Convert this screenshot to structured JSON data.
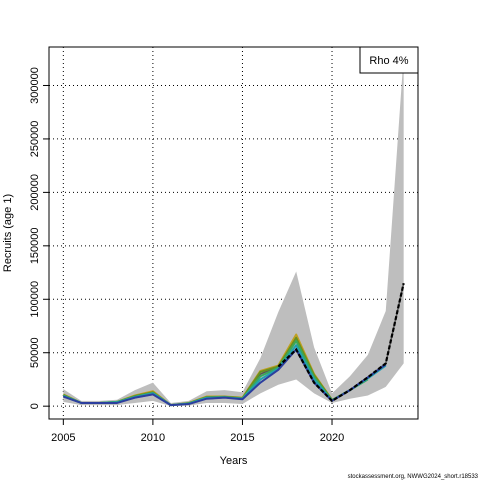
{
  "chart_data": {
    "type": "line",
    "xlabel": "Years",
    "ylabel": "Recruits (age 1)",
    "xlim": [
      2004.2,
      2024.8
    ],
    "ylim": [
      -12000,
      336000
    ],
    "x_ticks": [
      2005,
      2010,
      2015,
      2020
    ],
    "y_ticks": [
      0,
      50000,
      100000,
      150000,
      200000,
      250000,
      300000
    ],
    "grid": "dotted",
    "legend": {
      "placement": "top-right",
      "text": "Rho 4%"
    },
    "credit": "stockassessment.org, NWWG2024_short.r18533",
    "band": {
      "name": "confidence interval",
      "color": "#bebebe",
      "x": [
        2005,
        2006,
        2007,
        2008,
        2009,
        2010,
        2011,
        2012,
        2013,
        2014,
        2015,
        2016,
        2017,
        2018,
        2019,
        2020,
        2021,
        2022,
        2023,
        2024
      ],
      "lower": [
        4000,
        1000,
        1000,
        1000,
        3000,
        5000,
        0,
        500,
        3000,
        3000,
        2000,
        12000,
        20000,
        25000,
        12000,
        3000,
        7000,
        10000,
        18000,
        40000
      ],
      "upper": [
        16000,
        5000,
        5000,
        6000,
        15000,
        22000,
        3000,
        5000,
        14000,
        15000,
        13000,
        45000,
        88000,
        126000,
        55000,
        12000,
        28000,
        48000,
        89000,
        328000
      ]
    },
    "series": [
      {
        "color": "#555555",
        "values": [
          9000,
          3000,
          3000,
          3000,
          8000,
          11000,
          1000,
          2000,
          7000,
          8000,
          7000,
          30000,
          37000,
          53000,
          22000,
          5000,
          15000,
          27000,
          40000,
          115000
        ]
      },
      {
        "color": "#c0a020",
        "values": [
          11000,
          3000,
          3000,
          4000,
          10000,
          14000,
          1000,
          3000,
          9000,
          9000,
          8000,
          33000,
          38000,
          67000,
          30000,
          6000
        ]
      },
      {
        "color": "#6a8f1f",
        "values": [
          10500,
          3000,
          3000,
          4000,
          9500,
          13000,
          1000,
          2800,
          8500,
          8800,
          7500,
          32000,
          37000,
          64000,
          29000,
          5800,
          15000
        ]
      },
      {
        "color": "#3aa85a",
        "values": [
          10000,
          3000,
          3000,
          4000,
          9000,
          12500,
          1000,
          2600,
          8000,
          8500,
          7200,
          28000,
          36000,
          61000,
          27000,
          5600,
          15000,
          25000
        ]
      },
      {
        "color": "#20a0b0",
        "values": [
          9500,
          3000,
          3000,
          3500,
          8500,
          12000,
          1000,
          2400,
          7800,
          8200,
          7000,
          25000,
          35000,
          57000,
          25000,
          5300,
          15000,
          26000,
          38000
        ]
      },
      {
        "color": "#2c3e9e",
        "values": [
          9000,
          3000,
          3000,
          3000,
          8000,
          11000,
          1000,
          2000,
          7000,
          8000,
          6500,
          22000,
          34000,
          53000,
          22000,
          5000,
          15000,
          27000,
          39000
        ]
      }
    ],
    "dashed_series": {
      "color": "#000000",
      "x": [
        2017,
        2018,
        2019,
        2020,
        2021,
        2022,
        2023,
        2024
      ],
      "values": [
        37000,
        53000,
        22000,
        5000,
        15000,
        27000,
        40000,
        115000
      ]
    }
  }
}
